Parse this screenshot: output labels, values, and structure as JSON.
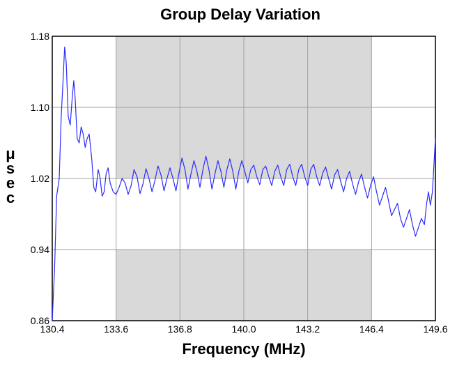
{
  "chart_data": {
    "type": "line",
    "title": "Group Delay Variation",
    "xlabel": "Frequency (MHz)",
    "ylabel": "μsec",
    "xlim": [
      130.4,
      149.6
    ],
    "ylim": [
      0.86,
      1.18
    ],
    "x_ticks": [
      "130.4",
      "133.6",
      "136.8",
      "140.0",
      "143.2",
      "146.4",
      "149.6"
    ],
    "y_ticks": [
      "0.86",
      "0.94",
      "1.02",
      "1.10",
      "1.18"
    ],
    "grid": true,
    "shaded_band": {
      "x_range": [
        133.6,
        146.4
      ],
      "y_bands": [
        [
          0.86,
          0.94
        ],
        [
          1.02,
          1.18
        ]
      ]
    },
    "colors": {
      "line": "#2b2bff",
      "shade": "#d9d9d9",
      "grid": "#a0a0a0"
    },
    "series": [
      {
        "points": [
          [
            130.4,
            0.86
          ],
          [
            130.52,
            0.92
          ],
          [
            130.62,
            1.0
          ],
          [
            130.75,
            1.02
          ],
          [
            130.85,
            1.09
          ],
          [
            130.95,
            1.135
          ],
          [
            131.02,
            1.168
          ],
          [
            131.1,
            1.15
          ],
          [
            131.2,
            1.09
          ],
          [
            131.3,
            1.08
          ],
          [
            131.4,
            1.11
          ],
          [
            131.48,
            1.13
          ],
          [
            131.55,
            1.11
          ],
          [
            131.65,
            1.065
          ],
          [
            131.75,
            1.06
          ],
          [
            131.85,
            1.078
          ],
          [
            131.95,
            1.07
          ],
          [
            132.05,
            1.055
          ],
          [
            132.15,
            1.065
          ],
          [
            132.25,
            1.07
          ],
          [
            132.38,
            1.042
          ],
          [
            132.48,
            1.01
          ],
          [
            132.58,
            1.005
          ],
          [
            132.7,
            1.03
          ],
          [
            132.8,
            1.02
          ],
          [
            132.9,
            1.0
          ],
          [
            133.0,
            1.005
          ],
          [
            133.1,
            1.025
          ],
          [
            133.2,
            1.032
          ],
          [
            133.3,
            1.015
          ],
          [
            133.45,
            1.005
          ],
          [
            133.6,
            1.002
          ],
          [
            133.75,
            1.01
          ],
          [
            133.9,
            1.02
          ],
          [
            134.05,
            1.015
          ],
          [
            134.2,
            1.002
          ],
          [
            134.35,
            1.012
          ],
          [
            134.5,
            1.03
          ],
          [
            134.65,
            1.022
          ],
          [
            134.8,
            1.003
          ],
          [
            134.95,
            1.014
          ],
          [
            135.1,
            1.031
          ],
          [
            135.25,
            1.02
          ],
          [
            135.4,
            1.005
          ],
          [
            135.55,
            1.018
          ],
          [
            135.7,
            1.034
          ],
          [
            135.85,
            1.024
          ],
          [
            136.0,
            1.006
          ],
          [
            136.15,
            1.02
          ],
          [
            136.3,
            1.032
          ],
          [
            136.45,
            1.02
          ],
          [
            136.6,
            1.006
          ],
          [
            136.75,
            1.026
          ],
          [
            136.9,
            1.043
          ],
          [
            137.05,
            1.03
          ],
          [
            137.2,
            1.008
          ],
          [
            137.35,
            1.025
          ],
          [
            137.5,
            1.04
          ],
          [
            137.65,
            1.028
          ],
          [
            137.8,
            1.01
          ],
          [
            137.95,
            1.03
          ],
          [
            138.1,
            1.045
          ],
          [
            138.25,
            1.03
          ],
          [
            138.4,
            1.008
          ],
          [
            138.55,
            1.025
          ],
          [
            138.7,
            1.04
          ],
          [
            138.85,
            1.028
          ],
          [
            139.0,
            1.01
          ],
          [
            139.15,
            1.03
          ],
          [
            139.3,
            1.042
          ],
          [
            139.45,
            1.028
          ],
          [
            139.6,
            1.008
          ],
          [
            139.75,
            1.028
          ],
          [
            139.9,
            1.04
          ],
          [
            140.05,
            1.028
          ],
          [
            140.2,
            1.015
          ],
          [
            140.35,
            1.03
          ],
          [
            140.5,
            1.035
          ],
          [
            140.65,
            1.022
          ],
          [
            140.8,
            1.013
          ],
          [
            140.95,
            1.03
          ],
          [
            141.1,
            1.034
          ],
          [
            141.25,
            1.022
          ],
          [
            141.4,
            1.012
          ],
          [
            141.55,
            1.028
          ],
          [
            141.7,
            1.035
          ],
          [
            141.85,
            1.022
          ],
          [
            142.0,
            1.012
          ],
          [
            142.15,
            1.03
          ],
          [
            142.3,
            1.036
          ],
          [
            142.45,
            1.022
          ],
          [
            142.6,
            1.012
          ],
          [
            142.75,
            1.03
          ],
          [
            142.9,
            1.036
          ],
          [
            143.05,
            1.022
          ],
          [
            143.2,
            1.012
          ],
          [
            143.35,
            1.03
          ],
          [
            143.5,
            1.036
          ],
          [
            143.65,
            1.022
          ],
          [
            143.8,
            1.012
          ],
          [
            143.95,
            1.026
          ],
          [
            144.1,
            1.033
          ],
          [
            144.25,
            1.02
          ],
          [
            144.4,
            1.008
          ],
          [
            144.55,
            1.024
          ],
          [
            144.7,
            1.03
          ],
          [
            144.85,
            1.017
          ],
          [
            145.0,
            1.005
          ],
          [
            145.15,
            1.02
          ],
          [
            145.3,
            1.028
          ],
          [
            145.45,
            1.014
          ],
          [
            145.6,
            1.002
          ],
          [
            145.75,
            1.016
          ],
          [
            145.9,
            1.025
          ],
          [
            146.05,
            1.01
          ],
          [
            146.2,
            0.998
          ],
          [
            146.35,
            1.012
          ],
          [
            146.5,
            1.022
          ],
          [
            146.65,
            1.005
          ],
          [
            146.8,
            0.99
          ],
          [
            146.95,
            1.0
          ],
          [
            147.1,
            1.01
          ],
          [
            147.25,
            0.995
          ],
          [
            147.4,
            0.978
          ],
          [
            147.55,
            0.985
          ],
          [
            147.7,
            0.992
          ],
          [
            147.85,
            0.975
          ],
          [
            148.0,
            0.965
          ],
          [
            148.15,
            0.975
          ],
          [
            148.3,
            0.985
          ],
          [
            148.45,
            0.968
          ],
          [
            148.6,
            0.955
          ],
          [
            148.75,
            0.965
          ],
          [
            148.9,
            0.975
          ],
          [
            149.05,
            0.968
          ],
          [
            149.15,
            0.99
          ],
          [
            149.25,
            1.005
          ],
          [
            149.35,
            0.99
          ],
          [
            149.45,
            1.005
          ],
          [
            149.6,
            1.065
          ]
        ]
      }
    ]
  }
}
